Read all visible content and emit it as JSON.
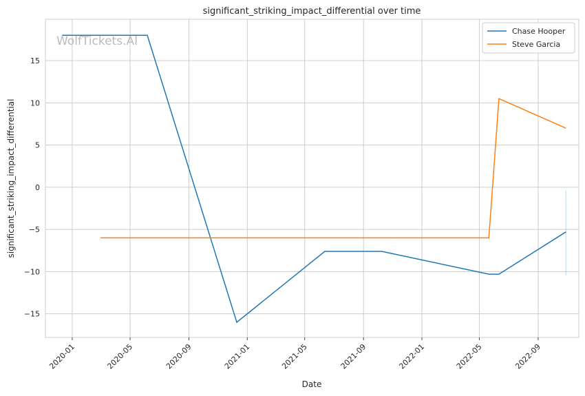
{
  "chart_data": {
    "type": "line",
    "title": "significant_striking_impact_differential over time",
    "xlabel": "Date",
    "ylabel": "significant_striking_impact_differential",
    "watermark": "WolfTickets.AI",
    "xlim": [
      "2019-11-06",
      "2022-11-25"
    ],
    "ylim": [
      -17.8,
      19.9
    ],
    "yticks": [
      -15,
      -10,
      -5,
      0,
      5,
      10,
      15
    ],
    "xticks": [
      "2020-01",
      "2020-05",
      "2020-09",
      "2021-01",
      "2021-05",
      "2021-09",
      "2022-01",
      "2022-05",
      "2022-09"
    ],
    "grid": true,
    "legend": "top-right",
    "series": [
      {
        "name": "Chase Hooper",
        "color": "#1f77b4",
        "x": [
          "2019-12-11",
          "2020-06-06",
          "2020-12-10",
          "2021-06-12",
          "2021-10-09",
          "2022-05-21",
          "2022-06-11",
          "2022-10-29"
        ],
        "y": [
          18,
          18,
          -16,
          -7.6,
          -7.6,
          -10.3,
          -10.3,
          -5.3
        ],
        "interval": {
          "x": "2022-10-29",
          "low": -10.5,
          "high": -0.4
        }
      },
      {
        "name": "Steve Garcia",
        "color": "#ff7f0e",
        "x": [
          "2020-02-29",
          "2022-05-21",
          "2022-06-11",
          "2022-10-29"
        ],
        "y": [
          -6,
          -6,
          10.5,
          7.0
        ]
      }
    ]
  }
}
